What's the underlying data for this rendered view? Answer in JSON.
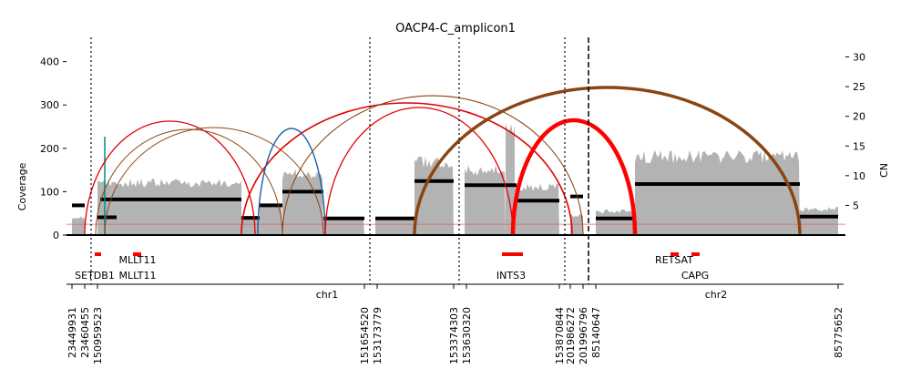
{
  "chart_data": {
    "type": "line",
    "title": "OACP4-C_amplicon1",
    "ylabel_left": "Coverage",
    "ylabel_right": "CN",
    "ylim_left": [
      0,
      456
    ],
    "ylim_right": [
      0,
      33.3
    ],
    "yticks_left": [
      0,
      100,
      200,
      300,
      400
    ],
    "yticks_right": [
      5,
      10,
      15,
      20,
      25,
      30
    ],
    "coverage_baseline": 25,
    "chromosomes": [
      {
        "name": "chr1",
        "start": 23449931,
        "end": 201996796
      },
      {
        "name": "chr2",
        "start": 85140647,
        "end": 85775652
      }
    ],
    "boundary_positions": [
      "23449931",
      "23460455",
      "150959523",
      "151654520",
      "153173779",
      "153374303",
      "153630320",
      "153870844",
      "201986272",
      "201996796",
      "85140647",
      "85775652"
    ],
    "segment_boundaries_dotted": [
      "23460455",
      "151654520",
      "153374303",
      "201986272"
    ],
    "chromosome_boundary_dashed": "201996796",
    "copy_number_segments": [
      {
        "start": "23449931",
        "end": "23460455",
        "cn": 5
      },
      {
        "start": "150959523",
        "end": "151654520",
        "cn": 3.0
      },
      {
        "start": "150959523",
        "end": "151654520",
        "cn": 6.0
      },
      {
        "start": "150959523",
        "end": "151654520",
        "cn": 2.9
      },
      {
        "start": "150959523",
        "end": "151654520",
        "cn": 5.0
      },
      {
        "start": "150959523",
        "end": "151654520",
        "cn": 7.3
      },
      {
        "start": "150959523",
        "end": "151654520",
        "cn": 2.8
      },
      {
        "start": "153173779",
        "end": "153374303",
        "cn": 2.8
      },
      {
        "start": "153173779",
        "end": "153374303",
        "cn": 9.1
      },
      {
        "start": "153630320",
        "end": "153870844",
        "cn": 8.4
      },
      {
        "start": "153630320",
        "end": "153870844",
        "cn": 5.8
      },
      {
        "start": "201986272",
        "end": "201996796",
        "cn": 6.5
      },
      {
        "start": "85140647",
        "end": "85775652",
        "cn": 2.8
      },
      {
        "start": "85140647",
        "end": "85775652",
        "cn": 8.6
      },
      {
        "start": "85140647",
        "end": "85775652",
        "cn": 3.1
      }
    ],
    "genes": [
      {
        "name": "SETDB1",
        "track": "lower"
      },
      {
        "name": "MLLT11",
        "track": "upper"
      },
      {
        "name": "MLLT11",
        "track": "lower"
      },
      {
        "name": "INTS3",
        "track": "lower"
      },
      {
        "name": "RETSAT",
        "track": "upper"
      },
      {
        "name": "CAPG",
        "track": "lower"
      }
    ],
    "legend": "none",
    "grid": false
  }
}
